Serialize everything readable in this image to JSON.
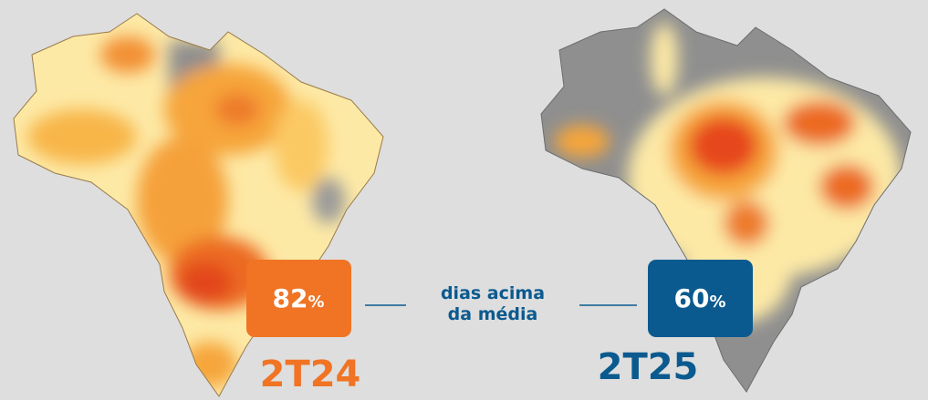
{
  "left": {
    "value": 82,
    "unit": "%",
    "period": "2T24"
  },
  "right": {
    "value": 60,
    "unit": "%",
    "period": "2T25"
  },
  "caption": [
    "dias acima",
    "da média"
  ]
}
